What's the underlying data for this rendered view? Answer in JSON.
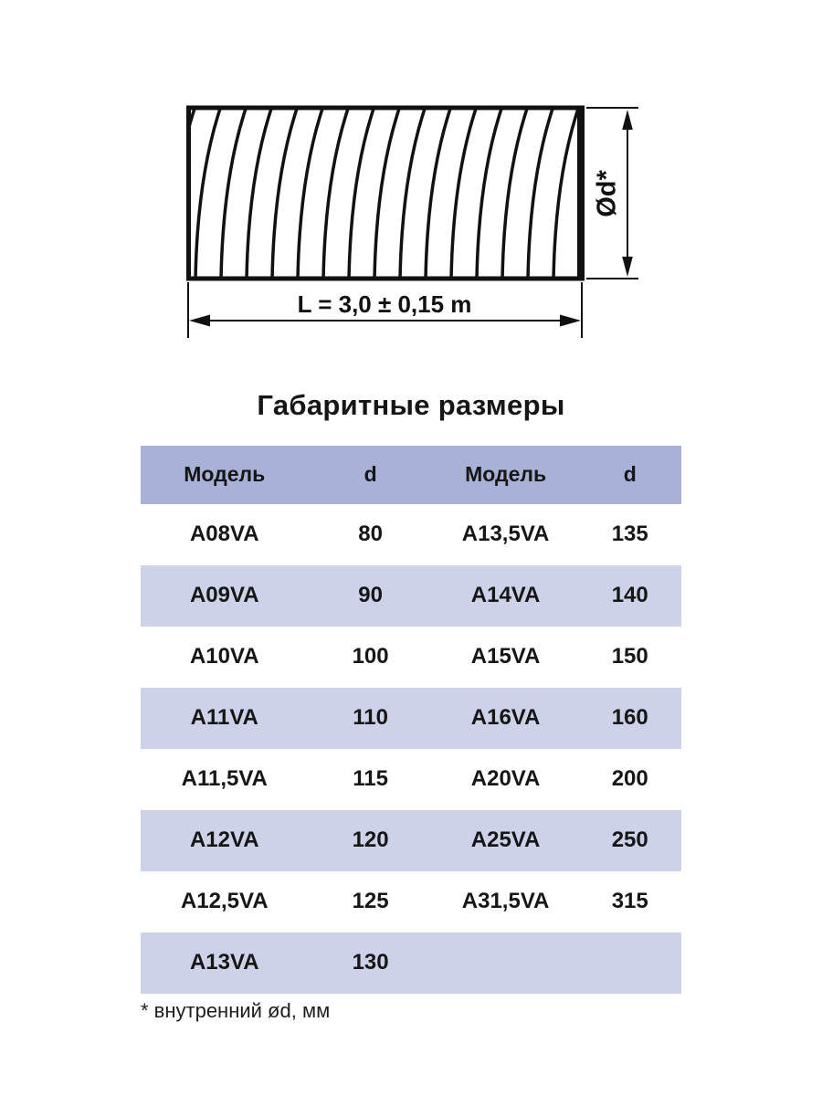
{
  "drawing": {
    "length_label": "L = 3,0 ± 0,15 m",
    "diameter_label": "Ød*",
    "line_color": "#111111"
  },
  "section_title": "Габаритные размеры",
  "table": {
    "header_bg": "#a9b2d6",
    "row_alt_bg": "#cdd2e9",
    "headers": [
      "Модель",
      "d",
      "Модель",
      "d"
    ],
    "rows": [
      [
        "A08VA",
        "80",
        "A13,5VA",
        "135"
      ],
      [
        "A09VA",
        "90",
        "A14VA",
        "140"
      ],
      [
        "A10VA",
        "100",
        "A15VA",
        "150"
      ],
      [
        "A11VA",
        "110",
        "A16VA",
        "160"
      ],
      [
        "A11,5VA",
        "115",
        "A20VA",
        "200"
      ],
      [
        "A12VA",
        "120",
        "A25VA",
        "250"
      ],
      [
        "A12,5VA",
        "125",
        "A31,5VA",
        "315"
      ],
      [
        "A13VA",
        "130",
        "",
        ""
      ]
    ]
  },
  "footnote": "* внутренний ød, мм"
}
